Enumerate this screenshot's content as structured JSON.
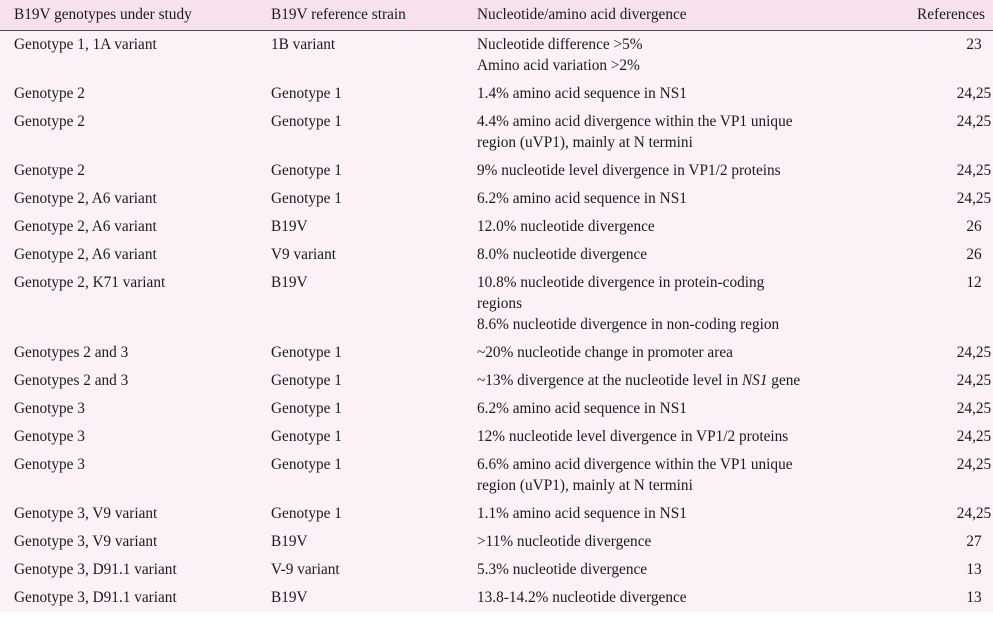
{
  "table": {
    "headers": {
      "genotype": "B19V genotypes under study",
      "reference_strain": "B19V reference strain",
      "divergence": "Nucleotide/amino acid divergence",
      "references": "References"
    },
    "rows": [
      {
        "genotype": "Genotype 1, 1A variant",
        "reference_strain": "1B variant",
        "divergence_lines": [
          "Nucleotide difference >5%",
          "Amino acid variation >2%"
        ],
        "references": "23"
      },
      {
        "genotype": "Genotype 2",
        "reference_strain": "Genotype 1",
        "divergence_lines": [
          "1.4% amino acid sequence in NS1"
        ],
        "references": "24,25"
      },
      {
        "genotype": "Genotype 2",
        "reference_strain": "Genotype 1",
        "divergence_lines": [
          "4.4% amino acid divergence within the VP1 unique",
          "region (uVP1), mainly at N termini"
        ],
        "references": "24,25"
      },
      {
        "genotype": "Genotype 2",
        "reference_strain": "Genotype 1",
        "divergence_lines": [
          "9% nucleotide level divergence in VP1/2 proteins"
        ],
        "references": "24,25"
      },
      {
        "genotype": "Genotype 2, A6 variant",
        "reference_strain": "Genotype 1",
        "divergence_lines": [
          "6.2% amino acid sequence in NS1"
        ],
        "references": "24,25"
      },
      {
        "genotype": "Genotype 2, A6 variant",
        "reference_strain": "B19V",
        "divergence_lines": [
          "12.0% nucleotide divergence"
        ],
        "references": "26"
      },
      {
        "genotype": "Genotype 2, A6 variant",
        "reference_strain": "V9 variant",
        "divergence_lines": [
          "8.0% nucleotide divergence"
        ],
        "references": "26"
      },
      {
        "genotype": "Genotype 2, K71 variant",
        "reference_strain": "B19V",
        "divergence_lines": [
          "10.8% nucleotide divergence in protein-coding",
          "regions",
          "8.6% nucleotide divergence in non-coding region"
        ],
        "references": "12"
      },
      {
        "genotype": "Genotypes 2 and 3",
        "reference_strain": "Genotype 1",
        "divergence_lines": [
          "~20% nucleotide change in promoter area"
        ],
        "references": "24,25"
      },
      {
        "genotype": "Genotypes 2 and 3",
        "reference_strain": "Genotype 1",
        "divergence_prefix": "~13% divergence at the nucleotide level in ",
        "divergence_italic": "NS1",
        "divergence_suffix": " gene",
        "references": "24,25"
      },
      {
        "genotype": "Genotype 3",
        "reference_strain": "Genotype 1",
        "divergence_lines": [
          "6.2% amino acid sequence in NS1"
        ],
        "references": "24,25"
      },
      {
        "genotype": "Genotype 3",
        "reference_strain": "Genotype 1",
        "divergence_lines": [
          "12% nucleotide level divergence in VP1/2 proteins"
        ],
        "references": "24,25"
      },
      {
        "genotype": "Genotype 3",
        "reference_strain": "Genotype 1",
        "divergence_lines": [
          "6.6% amino acid divergence within the VP1 unique",
          "region (uVP1), mainly at N termini"
        ],
        "references": "24,25"
      },
      {
        "genotype": "Genotype 3, V9 variant",
        "reference_strain": "Genotype 1",
        "divergence_lines": [
          "1.1% amino acid sequence in NS1"
        ],
        "references": "24,25"
      },
      {
        "genotype": "Genotype 3, V9 variant",
        "reference_strain": "B19V",
        "divergence_lines": [
          ">11% nucleotide divergence"
        ],
        "references": "27"
      },
      {
        "genotype": "Genotype 3, D91.1 variant",
        "reference_strain": "V-9 variant",
        "divergence_lines": [
          "5.3% nucleotide divergence"
        ],
        "references": "13"
      },
      {
        "genotype": "Genotype 3, D91.1 variant",
        "reference_strain": "B19V",
        "divergence_lines": [
          "13.8-14.2% nucleotide divergence"
        ],
        "references": "13"
      }
    ]
  }
}
